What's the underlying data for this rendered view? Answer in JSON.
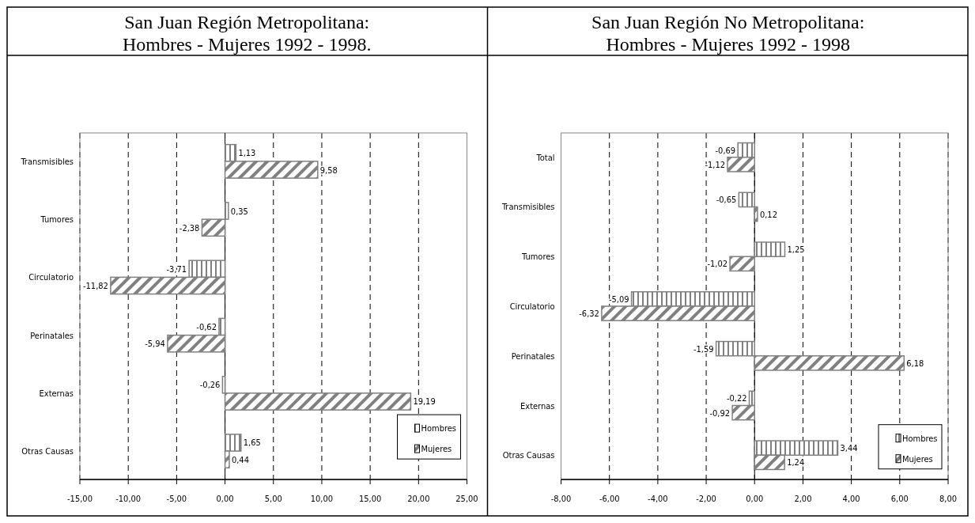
{
  "chart_data": [
    {
      "type": "bar",
      "orientation": "horizontal",
      "title": "San Juan Región Metropolitana:\nHombres - Mujeres   1992 - 1998.",
      "categories": [
        "Transmisibles",
        "Tumores",
        "Circulatorio",
        "Perinatales",
        "Externas",
        "Otras Causas"
      ],
      "series": [
        {
          "name": "Hombres",
          "color": "#808080",
          "values": [
            1.13,
            0.35,
            -3.71,
            -0.62,
            -0.26,
            1.65
          ]
        },
        {
          "name": "Mujeres",
          "color": "#808080",
          "values": [
            9.58,
            -2.38,
            -11.82,
            -5.94,
            19.19,
            0.44
          ]
        }
      ],
      "xlim": [
        -15,
        25
      ],
      "xticks": [
        {
          "value": -15,
          "label": "-15,00"
        },
        {
          "value": -10,
          "label": "-10,00"
        },
        {
          "value": -5,
          "label": "-5,00"
        },
        {
          "value": 0,
          "label": "0,00"
        },
        {
          "value": 5,
          "label": "5,00"
        },
        {
          "value": 10,
          "label": "10,00"
        },
        {
          "value": 15,
          "label": "15,00"
        },
        {
          "value": 20,
          "label": "20,00"
        },
        {
          "value": 25,
          "label": "25,00"
        }
      ],
      "grid": "x",
      "legend": "bottom right",
      "value_labels": [
        [
          "1,13",
          "0,35",
          "-3,71",
          "-0,62",
          "-0,26",
          "1,65"
        ],
        [
          "9,58",
          "-2,38",
          "-11,82",
          "-5,94",
          "19,19",
          "0,44"
        ]
      ]
    },
    {
      "type": "bar",
      "orientation": "horizontal",
      "title": "San Juan Región No Metropolitana:\nHombres - Mujeres   1992 - 1998",
      "categories": [
        "Total",
        "Transmisibles",
        "Tumores",
        "Circulatorio",
        "Perinatales",
        "Externas",
        "Otras Causas"
      ],
      "series": [
        {
          "name": "Hombres",
          "color": "#808080",
          "values": [
            -0.69,
            -0.65,
            1.25,
            -5.09,
            -1.59,
            -0.22,
            3.44
          ]
        },
        {
          "name": "Mujeres",
          "color": "#808080",
          "values": [
            -1.12,
            0.12,
            -1.02,
            -6.32,
            6.18,
            -0.92,
            1.24
          ]
        }
      ],
      "xlim": [
        -8,
        8
      ],
      "xticks": [
        {
          "value": -8,
          "label": "-8,00"
        },
        {
          "value": -6,
          "label": "-6,00"
        },
        {
          "value": -4,
          "label": "-4,00"
        },
        {
          "value": -2,
          "label": "-2,00"
        },
        {
          "value": 0,
          "label": "0,00"
        },
        {
          "value": 2,
          "label": "2,00"
        },
        {
          "value": 4,
          "label": "4,00"
        },
        {
          "value": 6,
          "label": "6,00"
        },
        {
          "value": 8,
          "label": "8,00"
        }
      ],
      "grid": "x",
      "legend": "bottom right",
      "value_labels": [
        [
          "-0,69",
          "-0,65",
          "1,25",
          "-5,09",
          "-1,59",
          "-0,22",
          "3,44"
        ],
        [
          "-1,12",
          "0,12",
          "-1,02",
          "-6,32",
          "6,18",
          "-0,92",
          "1,24"
        ]
      ]
    }
  ]
}
